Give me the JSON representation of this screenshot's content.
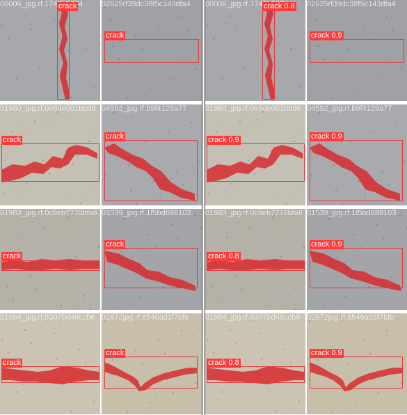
{
  "label_panel": {
    "tiles": [
      {
        "filename_a": "00006_jpg.rf.1742b5674",
        "filename_b": "",
        "label": "crack"
      },
      {
        "filename_a": "02625rf39dc38f5c143dfa4",
        "filename_b": "",
        "label": "crack"
      },
      {
        "filename_a": "01980_jpg.rf.0e8de001bbd6",
        "filename_b": "",
        "label": "crack"
      },
      {
        "filename_a": "04592_jpg.rf.b9f4129a77",
        "filename_b": "",
        "label": "crack"
      },
      {
        "filename_a": "01983_jpg.rf.0c8eb7770bfa6",
        "filename_b": "",
        "label": "crack"
      },
      {
        "filename_a": "01539_jpg.rf.1f5bd688103",
        "filename_b": "",
        "label": "crack"
      },
      {
        "filename_a": "01984_jpg.rf.8307bd48ccb6",
        "filename_b": "",
        "label": "crack"
      },
      {
        "filename_a": "02872jpg.rf.8546ad3f7bfe",
        "filename_b": "",
        "label": "crack"
      }
    ]
  },
  "pred_panel": {
    "tiles": [
      {
        "filename_a": "00006_jpg.rf.1742b5674",
        "label": "crack 0.8"
      },
      {
        "filename_a": "02625rf39dc38f5c143dfa4",
        "label": "crack 0.9"
      },
      {
        "filename_a": "01980_jpg.rf.0e8de001bbd6",
        "label": "crack 0.9"
      },
      {
        "filename_a": "04592_jpg.rf.b9f4129a77",
        "label": "crack 0.9"
      },
      {
        "filename_a": "01983_jpg.rf.0c8eb7770bfa6",
        "label": "crack 0.8"
      },
      {
        "filename_a": "01539_jpg.rf.1f5bd688103",
        "label": "crack 0.9"
      },
      {
        "filename_a": "01984_jpg.rf.8307bd48ccb6",
        "label": "crack 0.8"
      },
      {
        "filename_a": "02872jpg.rf.8546ad3f7bfe",
        "label": "crack 0.9"
      }
    ]
  },
  "colors": {
    "mask": "#d8262a",
    "box": "#e8373b",
    "tag_bg": "#ff3a3a",
    "concrete_grey": "#a5a5a7",
    "concrete_beige": "#c9c1ae"
  }
}
